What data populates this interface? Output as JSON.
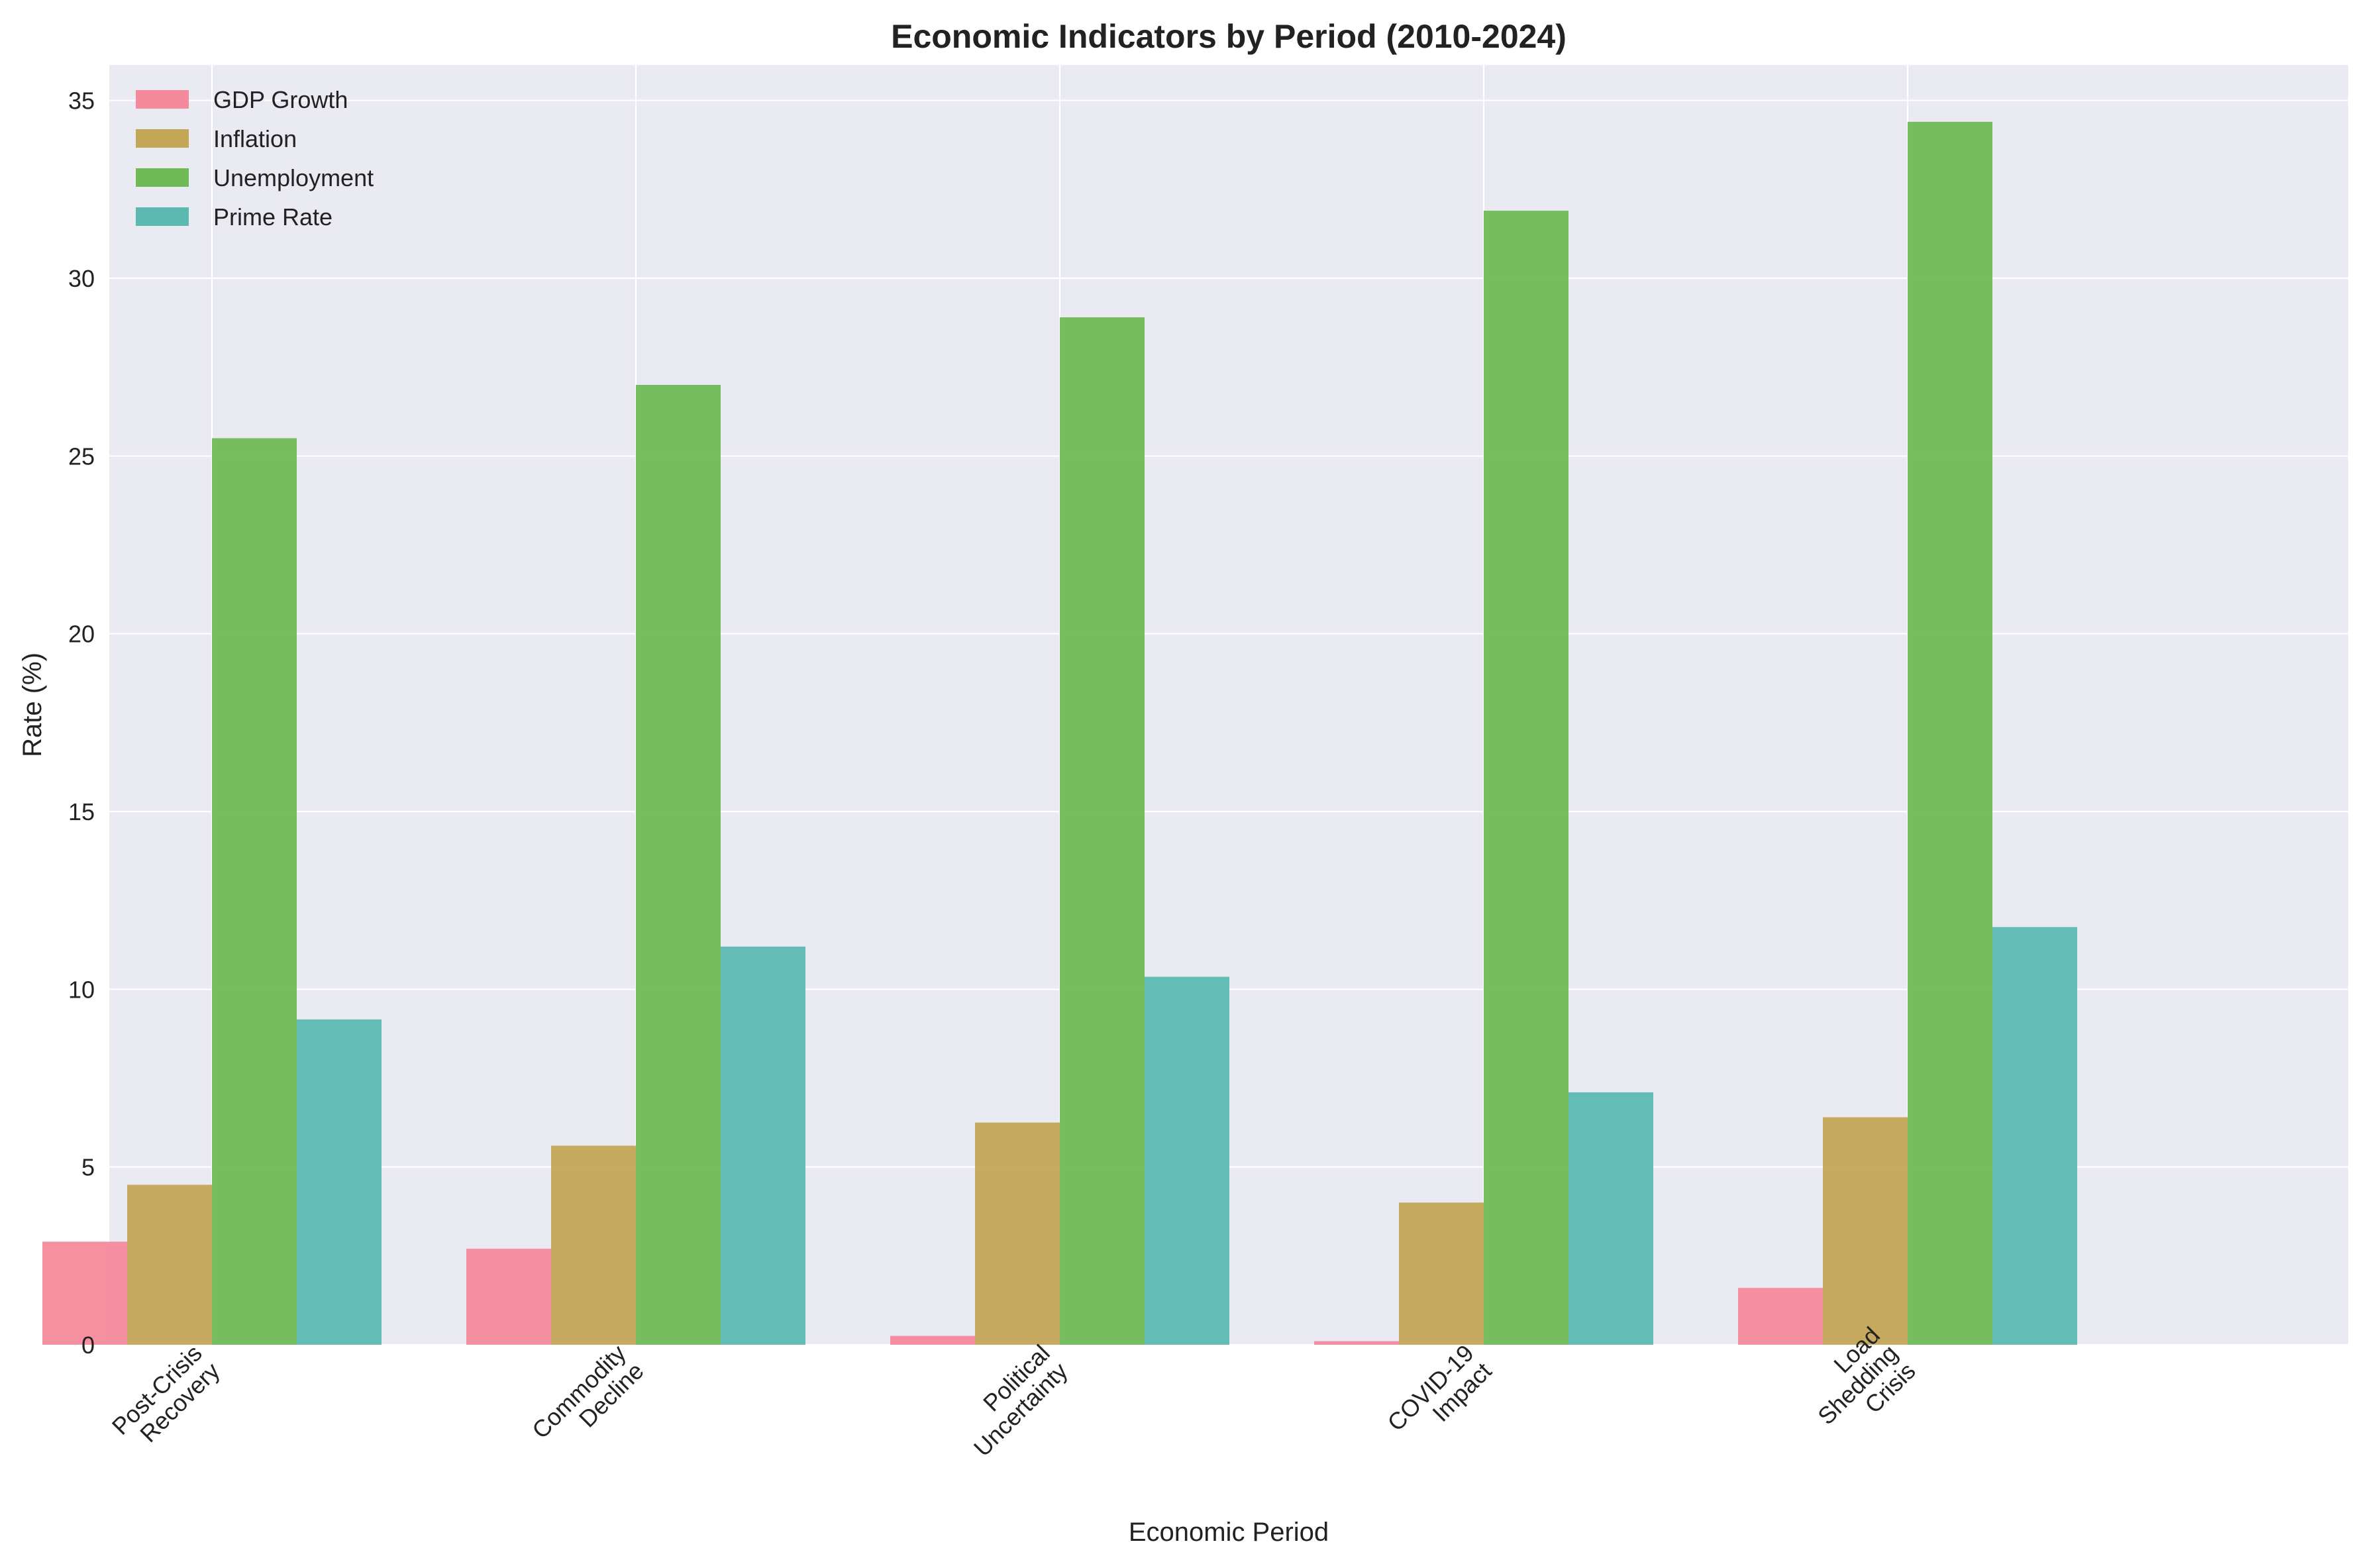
{
  "chart_data": {
    "type": "bar",
    "title": "Economic Indicators by Period (2010-2024)",
    "xlabel": "Economic Period",
    "ylabel": "Rate (%)",
    "ylim": [
      0,
      36
    ],
    "yticks": [
      0,
      5,
      10,
      15,
      20,
      25,
      30,
      35
    ],
    "grid": true,
    "legend_position": "top-left",
    "categories": [
      [
        "Post-Crisis",
        "Recovery"
      ],
      [
        "Commodity",
        "Decline"
      ],
      [
        "Political",
        "Uncertainty"
      ],
      [
        "COVID-19",
        "Impact"
      ],
      [
        "Load",
        "Shedding",
        "Crisis"
      ]
    ],
    "series": [
      {
        "name": "GDP Growth",
        "color": "#f48a9c",
        "values": [
          2.9,
          2.7,
          0.25,
          0.1,
          1.6
        ]
      },
      {
        "name": "Inflation",
        "color": "#c4a657",
        "values": [
          4.5,
          5.6,
          6.25,
          4.0,
          6.4
        ]
      },
      {
        "name": "Unemployment",
        "color": "#70ba57",
        "values": [
          25.5,
          27.0,
          28.9,
          31.9,
          34.4
        ]
      },
      {
        "name": "Prime Rate",
        "color": "#5cb9b2",
        "values": [
          9.15,
          11.2,
          10.35,
          7.1,
          11.75
        ]
      }
    ]
  }
}
